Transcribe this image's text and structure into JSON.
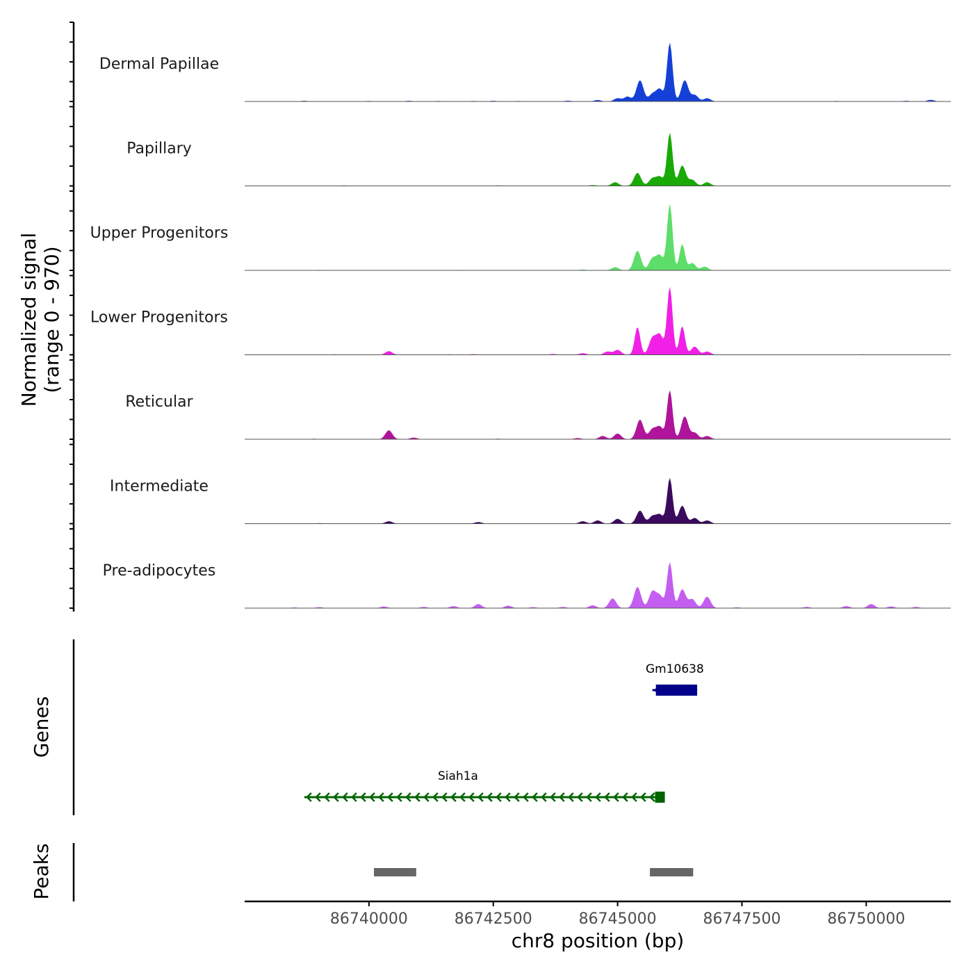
{
  "chart_data": {
    "type": "area",
    "chromosome": "chr8",
    "xlabel": "chr8 position (bp)",
    "ylabel_line1": "Normalized signal",
    "ylabel_line2": "(range 0 - 970)",
    "y_range": [
      0,
      970
    ],
    "xlim": [
      86737500,
      86751700
    ],
    "x_ticks": [
      86740000,
      86742500,
      86745000,
      86747500,
      86750000
    ],
    "x_tick_labels": [
      "86740000",
      "86742500",
      "86745000",
      "86747500",
      "86750000"
    ],
    "coverage": [
      {
        "name": "Dermal Papillae",
        "color": "#1540d8",
        "peak_max": 970,
        "peaks": [
          [
            86738700,
            8
          ],
          [
            86740000,
            6
          ],
          [
            86740800,
            8
          ],
          [
            86741400,
            6
          ],
          [
            86742100,
            6
          ],
          [
            86742500,
            8
          ],
          [
            86743000,
            6
          ],
          [
            86744000,
            10
          ],
          [
            86744600,
            18
          ],
          [
            86745000,
            40
          ],
          [
            86745200,
            60
          ],
          [
            86745450,
            260
          ],
          [
            86745700,
            90
          ],
          [
            86745850,
            150
          ],
          [
            86746050,
            720
          ],
          [
            86746350,
            260
          ],
          [
            86746550,
            80
          ],
          [
            86746800,
            40
          ],
          [
            86749400,
            6
          ],
          [
            86750800,
            8
          ],
          [
            86751300,
            20
          ]
        ]
      },
      {
        "name": "Papillary",
        "color": "#1aaa08",
        "peak_max": 970,
        "peaks": [
          [
            86739500,
            6
          ],
          [
            86742600,
            6
          ],
          [
            86744500,
            10
          ],
          [
            86744950,
            45
          ],
          [
            86745400,
            160
          ],
          [
            86745700,
            90
          ],
          [
            86745850,
            110
          ],
          [
            86746050,
            650
          ],
          [
            86746300,
            250
          ],
          [
            86746500,
            75
          ],
          [
            86746800,
            45
          ]
        ]
      },
      {
        "name": "Upper Progenitors",
        "color": "#5ddd6a",
        "peak_max": 970,
        "peaks": [
          [
            86739000,
            6
          ],
          [
            86741800,
            6
          ],
          [
            86744300,
            10
          ],
          [
            86744950,
            40
          ],
          [
            86745400,
            240
          ],
          [
            86745700,
            140
          ],
          [
            86745850,
            180
          ],
          [
            86746050,
            810
          ],
          [
            86746300,
            320
          ],
          [
            86746500,
            90
          ],
          [
            86746750,
            45
          ]
        ]
      },
      {
        "name": "Lower Progenitors",
        "color": "#f020e6",
        "peak_max": 970,
        "peaks": [
          [
            86739300,
            6
          ],
          [
            86740400,
            45
          ],
          [
            86741600,
            6
          ],
          [
            86742100,
            8
          ],
          [
            86743700,
            10
          ],
          [
            86744300,
            20
          ],
          [
            86744800,
            40
          ],
          [
            86745000,
            60
          ],
          [
            86745400,
            340
          ],
          [
            86745700,
            200
          ],
          [
            86745850,
            240
          ],
          [
            86746050,
            830
          ],
          [
            86746300,
            350
          ],
          [
            86746550,
            100
          ],
          [
            86746800,
            40
          ],
          [
            86749900,
            6
          ]
        ]
      },
      {
        "name": "Reticular",
        "color": "#b0149a",
        "peak_max": 970,
        "peaks": [
          [
            86738900,
            6
          ],
          [
            86740400,
            110
          ],
          [
            86740900,
            20
          ],
          [
            86742600,
            6
          ],
          [
            86744200,
            15
          ],
          [
            86744700,
            40
          ],
          [
            86745000,
            70
          ],
          [
            86745450,
            240
          ],
          [
            86745700,
            120
          ],
          [
            86745850,
            150
          ],
          [
            86746050,
            600
          ],
          [
            86746350,
            280
          ],
          [
            86746550,
            80
          ],
          [
            86746800,
            40
          ]
        ]
      },
      {
        "name": "Intermediate",
        "color": "#3a0a5c",
        "peak_max": 970,
        "peaks": [
          [
            86739000,
            6
          ],
          [
            86740400,
            30
          ],
          [
            86742200,
            20
          ],
          [
            86744300,
            30
          ],
          [
            86744600,
            40
          ],
          [
            86745000,
            60
          ],
          [
            86745450,
            160
          ],
          [
            86745700,
            90
          ],
          [
            86745850,
            110
          ],
          [
            86746050,
            560
          ],
          [
            86746300,
            220
          ],
          [
            86746550,
            70
          ],
          [
            86746800,
            40
          ]
        ]
      },
      {
        "name": "Pre-adipocytes",
        "color": "#c45ef0",
        "peak_max": 970,
        "peaks": [
          [
            86738500,
            8
          ],
          [
            86739000,
            12
          ],
          [
            86740300,
            20
          ],
          [
            86741100,
            15
          ],
          [
            86741700,
            25
          ],
          [
            86742200,
            50
          ],
          [
            86742800,
            30
          ],
          [
            86743300,
            12
          ],
          [
            86743900,
            15
          ],
          [
            86744500,
            35
          ],
          [
            86744900,
            120
          ],
          [
            86745400,
            260
          ],
          [
            86745700,
            200
          ],
          [
            86745850,
            150
          ],
          [
            86746050,
            560
          ],
          [
            86746300,
            230
          ],
          [
            86746500,
            110
          ],
          [
            86746800,
            140
          ],
          [
            86747400,
            10
          ],
          [
            86748800,
            15
          ],
          [
            86749600,
            25
          ],
          [
            86750100,
            50
          ],
          [
            86750500,
            20
          ],
          [
            86751000,
            15
          ]
        ]
      }
    ],
    "genes": [
      {
        "name": "Gm10638",
        "start": 86745700,
        "end": 86746600,
        "strand": "-",
        "color": "#00008b",
        "row": 0
      },
      {
        "name": "Siah1a",
        "start": 86738700,
        "end": 86745950,
        "strand": "-",
        "color": "#006400",
        "row": 1
      }
    ],
    "peak_regions": [
      {
        "start": 86740100,
        "end": 86740950
      },
      {
        "start": 86745650,
        "end": 86746520
      }
    ],
    "peak_region_color": "#666666",
    "panel_titles": {
      "genes": "Genes",
      "peaks": "Peaks"
    }
  }
}
